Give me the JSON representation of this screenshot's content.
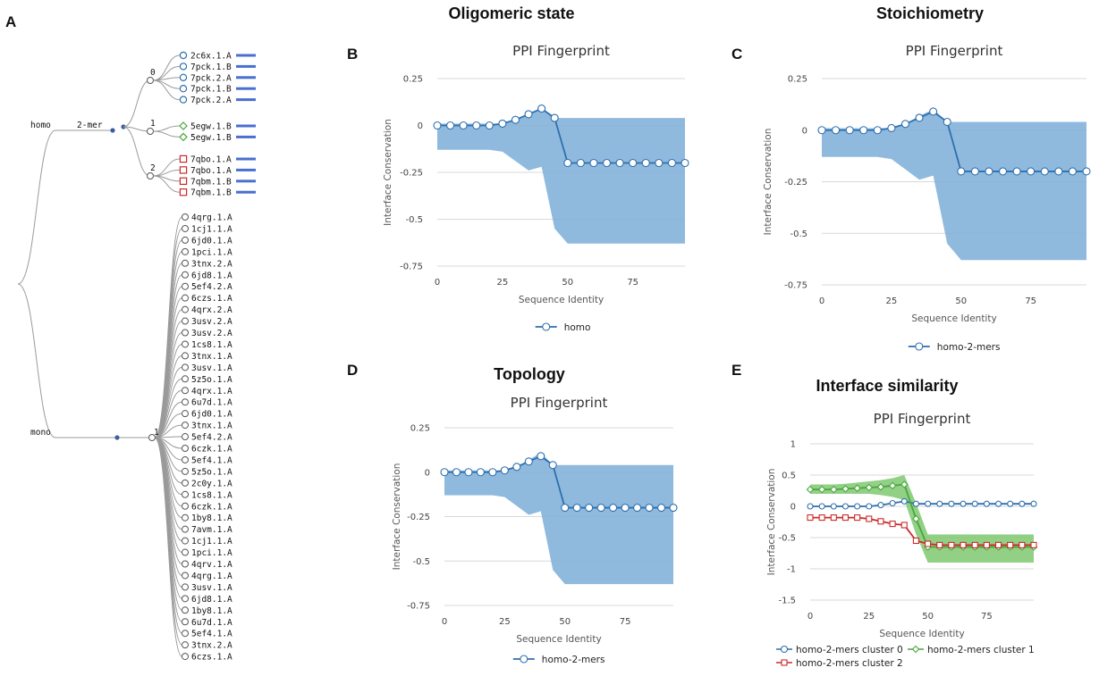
{
  "panel_letters": {
    "a": "A",
    "b": "B",
    "c": "C",
    "d": "D",
    "e": "E"
  },
  "section_titles": {
    "b": "Oligomeric state",
    "c": "Stoichiometry",
    "d": "Topology",
    "e": "Interface similarity"
  },
  "colors": {
    "blue_line": "#2f6fad",
    "blue_band": "#7fb0da",
    "green_line": "#4aa63d",
    "green_band": "#7ec870",
    "red_line": "#cc2a2a",
    "tree_line": "#9a9a9a",
    "tree_dot": "#3a5ea0"
  },
  "tree": {
    "root_labels": {
      "homo": "homo",
      "mer": "2-mer",
      "mono": "mono"
    },
    "cluster0_label": "0",
    "cluster1_label": "1",
    "cluster2_label": "2",
    "mono_cluster_label": "1",
    "cluster0": [
      "2c6x.1.A",
      "7pck.1.B",
      "7pck.2.A",
      "7pck.1.B",
      "7pck.2.A"
    ],
    "cluster1": [
      "5egw.1.B",
      "5egw.1.B"
    ],
    "cluster2": [
      "7qbo.1.A",
      "7qbo.1.A",
      "7qbm.1.B",
      "7qbm.1.B"
    ],
    "mono": [
      "4qrg.1.A",
      "1cj1.1.A",
      "6jd0.1.A",
      "1pci.1.A",
      "3tnx.2.A",
      "6jd8.1.A",
      "5ef4.2.A",
      "6czs.1.A",
      "4qrx.2.A",
      "3usv.2.A",
      "3usv.2.A",
      "1cs8.1.A",
      "3tnx.1.A",
      "3usv.1.A",
      "5z5o.1.A",
      "4qrx.1.A",
      "6u7d.1.A",
      "6jd0.1.A",
      "3tnx.1.A",
      "5ef4.2.A",
      "6czk.1.A",
      "5ef4.1.A",
      "5z5o.1.A",
      "2c0y.1.A",
      "1cs8.1.A",
      "6czk.1.A",
      "1by8.1.A",
      "7avm.1.A",
      "1cj1.1.A",
      "1pci.1.A",
      "4qrv.1.A",
      "4qrg.1.A",
      "3usv.1.A",
      "6jd8.1.A",
      "1by8.1.A",
      "6u7d.1.A",
      "5ef4.1.A",
      "3tnx.2.A",
      "6czs.1.A"
    ]
  },
  "chart_data": [
    {
      "id": "B",
      "type": "line",
      "title": "PPI Fingerprint",
      "xlabel": "Sequence Identity",
      "ylabel": "Interface Conservation",
      "xlim": [
        0,
        95
      ],
      "ylim": [
        -0.75,
        0.25
      ],
      "xticks": [
        "0",
        "25",
        "50",
        "75"
      ],
      "yticks": [
        "0.25",
        "0",
        "-0.25",
        "-0.5",
        "-0.75"
      ],
      "band_x": [
        0,
        5,
        10,
        15,
        20,
        25,
        30,
        35,
        40,
        45,
        50,
        55,
        95
      ],
      "band_upper": [
        0.01,
        0.01,
        0.01,
        0.01,
        0.01,
        0.01,
        0.03,
        0.06,
        0.09,
        0.04,
        0.04,
        0.04,
        0.04
      ],
      "band_lower": [
        -0.13,
        -0.13,
        -0.13,
        -0.13,
        -0.13,
        -0.14,
        -0.19,
        -0.24,
        -0.22,
        -0.55,
        -0.63,
        -0.63,
        -0.63
      ],
      "series": [
        {
          "name": "homo",
          "color": "#2f6fad",
          "marker": "circle",
          "x": [
            0,
            5,
            10,
            15,
            20,
            25,
            30,
            35,
            40,
            45,
            50,
            55,
            60,
            65,
            70,
            75,
            80,
            85,
            90,
            95
          ],
          "y": [
            0,
            0,
            0,
            0,
            0,
            0.01,
            0.03,
            0.06,
            0.09,
            0.04,
            -0.2,
            -0.2,
            -0.2,
            -0.2,
            -0.2,
            -0.2,
            -0.2,
            -0.2,
            -0.2,
            -0.2
          ]
        }
      ]
    },
    {
      "id": "C",
      "type": "line",
      "title": "PPI Fingerprint",
      "xlabel": "Sequence Identity",
      "ylabel": "Interface Conservation",
      "xlim": [
        0,
        95
      ],
      "ylim": [
        -0.75,
        0.25
      ],
      "xticks": [
        "0",
        "25",
        "50",
        "75"
      ],
      "yticks": [
        "0.25",
        "0",
        "-0.25",
        "-0.5",
        "-0.75"
      ],
      "band_x": [
        0,
        5,
        10,
        15,
        20,
        25,
        30,
        35,
        40,
        45,
        50,
        55,
        95
      ],
      "band_upper": [
        0.01,
        0.01,
        0.01,
        0.01,
        0.01,
        0.01,
        0.03,
        0.07,
        0.1,
        0.04,
        0.04,
        0.04,
        0.04
      ],
      "band_lower": [
        -0.13,
        -0.13,
        -0.13,
        -0.13,
        -0.13,
        -0.14,
        -0.19,
        -0.24,
        -0.22,
        -0.55,
        -0.63,
        -0.63,
        -0.63
      ],
      "series": [
        {
          "name": "homo-2-mers",
          "color": "#2f6fad",
          "marker": "circle",
          "x": [
            0,
            5,
            10,
            15,
            20,
            25,
            30,
            35,
            40,
            45,
            50,
            55,
            60,
            65,
            70,
            75,
            80,
            85,
            90,
            95
          ],
          "y": [
            0,
            0,
            0,
            0,
            0,
            0.01,
            0.03,
            0.06,
            0.09,
            0.04,
            -0.2,
            -0.2,
            -0.2,
            -0.2,
            -0.2,
            -0.2,
            -0.2,
            -0.2,
            -0.2,
            -0.2
          ]
        }
      ]
    },
    {
      "id": "D",
      "type": "line",
      "title": "PPI Fingerprint",
      "xlabel": "Sequence Identity",
      "ylabel": "Interface Conservation",
      "xlim": [
        0,
        95
      ],
      "ylim": [
        -0.75,
        0.25
      ],
      "xticks": [
        "0",
        "25",
        "50",
        "75"
      ],
      "yticks": [
        "0.25",
        "0",
        "-0.25",
        "-0.5",
        "-0.75"
      ],
      "band_x": [
        0,
        5,
        10,
        15,
        20,
        25,
        30,
        35,
        40,
        45,
        50,
        55,
        95
      ],
      "band_upper": [
        0.01,
        0.01,
        0.01,
        0.01,
        0.01,
        0.01,
        0.03,
        0.07,
        0.11,
        0.04,
        0.04,
        0.04,
        0.04
      ],
      "band_lower": [
        -0.13,
        -0.13,
        -0.13,
        -0.13,
        -0.13,
        -0.14,
        -0.19,
        -0.24,
        -0.22,
        -0.55,
        -0.63,
        -0.63,
        -0.63
      ],
      "series": [
        {
          "name": "homo-2-mers",
          "color": "#2f6fad",
          "marker": "circle",
          "x": [
            0,
            5,
            10,
            15,
            20,
            25,
            30,
            35,
            40,
            45,
            50,
            55,
            60,
            65,
            70,
            75,
            80,
            85,
            90,
            95
          ],
          "y": [
            0,
            0,
            0,
            0,
            0,
            0.01,
            0.03,
            0.06,
            0.09,
            0.04,
            -0.2,
            -0.2,
            -0.2,
            -0.2,
            -0.2,
            -0.2,
            -0.2,
            -0.2,
            -0.2,
            -0.2
          ]
        }
      ]
    },
    {
      "id": "E",
      "type": "line",
      "title": "PPI Fingerprint",
      "xlabel": "Sequence Identity",
      "ylabel": "Interface Conservation",
      "xlim": [
        0,
        95
      ],
      "ylim": [
        -1.5,
        1
      ],
      "xticks": [
        "0",
        "25",
        "50",
        "75"
      ],
      "yticks": [
        "1",
        "0.5",
        "0",
        "-0.5",
        "-1",
        "-1.5"
      ],
      "band_x": [
        0,
        5,
        10,
        15,
        20,
        25,
        30,
        35,
        40,
        45,
        50,
        55,
        95
      ],
      "band_upper": [
        0.35,
        0.35,
        0.35,
        0.36,
        0.38,
        0.4,
        0.42,
        0.45,
        0.5,
        0.05,
        -0.45,
        -0.45,
        -0.45
      ],
      "band_lower": [
        0.2,
        0.2,
        0.2,
        0.2,
        0.2,
        0.2,
        0.18,
        0.15,
        0.1,
        -0.45,
        -0.9,
        -0.9,
        -0.9
      ],
      "series": [
        {
          "name": "homo-2-mers cluster 0",
          "color": "#2f6fad",
          "marker": "circle",
          "x": [
            0,
            5,
            10,
            15,
            20,
            25,
            30,
            35,
            40,
            45,
            50,
            55,
            60,
            65,
            70,
            75,
            80,
            85,
            90,
            95
          ],
          "y": [
            0,
            0,
            0,
            0,
            0,
            0,
            0.02,
            0.05,
            0.08,
            0.04,
            0.04,
            0.04,
            0.04,
            0.04,
            0.04,
            0.04,
            0.04,
            0.04,
            0.04,
            0.04
          ]
        },
        {
          "name": "homo-2-mers cluster 1",
          "color": "#4aa63d",
          "marker": "diamond",
          "x": [
            0,
            5,
            10,
            15,
            20,
            25,
            30,
            35,
            40,
            45,
            50,
            55,
            60,
            65,
            70,
            75,
            80,
            85,
            90,
            95
          ],
          "y": [
            0.27,
            0.27,
            0.27,
            0.28,
            0.29,
            0.3,
            0.31,
            0.33,
            0.35,
            -0.2,
            -0.65,
            -0.65,
            -0.65,
            -0.65,
            -0.65,
            -0.65,
            -0.65,
            -0.65,
            -0.65,
            -0.65
          ]
        },
        {
          "name": "homo-2-mers cluster 2",
          "color": "#cc2a2a",
          "marker": "square",
          "x": [
            0,
            5,
            10,
            15,
            20,
            25,
            30,
            35,
            40,
            45,
            50,
            55,
            60,
            65,
            70,
            75,
            80,
            85,
            90,
            95
          ],
          "y": [
            -0.18,
            -0.18,
            -0.18,
            -0.18,
            -0.18,
            -0.2,
            -0.24,
            -0.28,
            -0.3,
            -0.55,
            -0.6,
            -0.62,
            -0.62,
            -0.62,
            -0.62,
            -0.62,
            -0.62,
            -0.62,
            -0.62,
            -0.62
          ]
        }
      ]
    }
  ]
}
